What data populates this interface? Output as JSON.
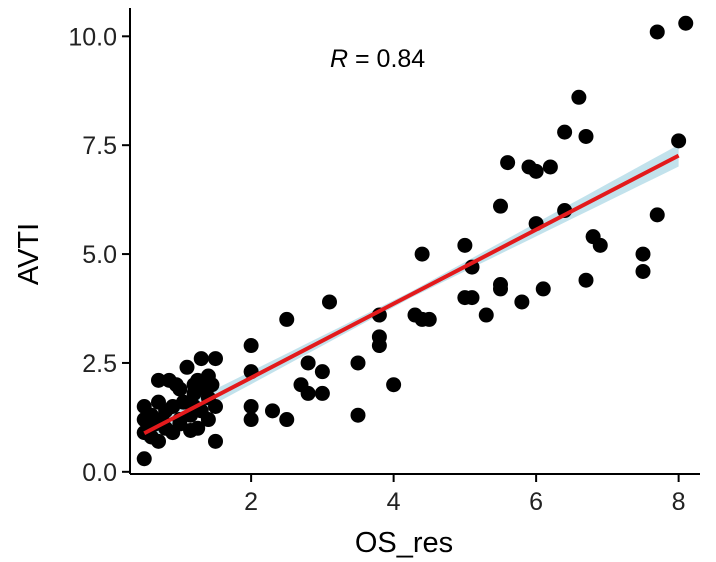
{
  "chart_data": {
    "type": "scatter",
    "title": "",
    "xlabel": "OS_res",
    "ylabel": "AVTI",
    "xlim": [
      0.3,
      8.3
    ],
    "ylim": [
      -0.05,
      10.65
    ],
    "x_ticks": [
      2,
      4,
      6,
      8
    ],
    "x_tick_labels": [
      "2",
      "4",
      "6",
      "8"
    ],
    "y_ticks": [
      0.0,
      2.5,
      5.0,
      7.5,
      10.0
    ],
    "y_tick_labels": [
      "0.0",
      "2.5",
      "5.0",
      "7.5",
      "10.0"
    ],
    "grid": false,
    "annotation": {
      "symbol": "R",
      "text": " = 0.84",
      "value": 0.84
    },
    "regression": {
      "x_range": [
        0.5,
        8.0
      ],
      "slope": 0.85,
      "intercept": 0.46,
      "line_color": "#e31a1c",
      "ci_color": "#add8e6",
      "ci_halfwidth": [
        0.2,
        0.07,
        0.25
      ]
    },
    "points_color": "#000000",
    "points": [
      [
        0.5,
        0.3
      ],
      [
        0.5,
        0.9
      ],
      [
        0.5,
        1.2
      ],
      [
        0.5,
        1.5
      ],
      [
        0.55,
        1.0
      ],
      [
        0.6,
        0.8
      ],
      [
        0.6,
        1.3
      ],
      [
        0.65,
        1.1
      ],
      [
        0.7,
        0.7
      ],
      [
        0.7,
        1.6
      ],
      [
        0.7,
        2.1
      ],
      [
        0.75,
        1.2
      ],
      [
        0.8,
        1.0
      ],
      [
        0.8,
        1.4
      ],
      [
        0.85,
        2.1
      ],
      [
        0.9,
        0.9
      ],
      [
        0.9,
        1.5
      ],
      [
        0.95,
        2.0
      ],
      [
        1.0,
        1.1
      ],
      [
        1.0,
        1.2
      ],
      [
        1.0,
        1.9
      ],
      [
        1.05,
        1.6
      ],
      [
        1.1,
        2.4
      ],
      [
        1.15,
        1.3
      ],
      [
        1.2,
        1.5
      ],
      [
        1.2,
        1.8
      ],
      [
        1.25,
        1.0
      ],
      [
        1.25,
        2.1
      ],
      [
        1.3,
        1.4
      ],
      [
        1.3,
        2.6
      ],
      [
        1.35,
        1.9
      ],
      [
        1.4,
        1.2
      ],
      [
        1.4,
        1.7
      ],
      [
        1.4,
        2.2
      ],
      [
        1.45,
        2.0
      ],
      [
        1.5,
        0.7
      ],
      [
        1.5,
        1.5
      ],
      [
        1.5,
        2.6
      ],
      [
        1.15,
        0.95
      ],
      [
        1.2,
        2.0
      ],
      [
        2.0,
        1.2
      ],
      [
        2.0,
        1.5
      ],
      [
        2.0,
        2.3
      ],
      [
        2.0,
        2.9
      ],
      [
        2.3,
        1.4
      ],
      [
        2.5,
        1.2
      ],
      [
        2.5,
        3.5
      ],
      [
        2.7,
        2.0
      ],
      [
        2.8,
        1.8
      ],
      [
        2.8,
        2.5
      ],
      [
        3.0,
        1.8
      ],
      [
        3.0,
        2.3
      ],
      [
        3.1,
        3.9
      ],
      [
        3.5,
        1.3
      ],
      [
        3.5,
        2.5
      ],
      [
        3.8,
        2.9
      ],
      [
        3.8,
        3.1
      ],
      [
        3.8,
        3.6
      ],
      [
        4.0,
        2.0
      ],
      [
        4.3,
        3.6
      ],
      [
        4.4,
        3.5
      ],
      [
        4.5,
        3.5
      ],
      [
        4.4,
        5.0
      ],
      [
        5.0,
        4.0
      ],
      [
        5.0,
        5.2
      ],
      [
        5.1,
        4.0
      ],
      [
        5.1,
        4.7
      ],
      [
        5.3,
        3.6
      ],
      [
        5.5,
        4.2
      ],
      [
        5.5,
        4.3
      ],
      [
        5.5,
        6.1
      ],
      [
        5.6,
        7.1
      ],
      [
        5.8,
        3.9
      ],
      [
        5.9,
        7.0
      ],
      [
        6.0,
        5.7
      ],
      [
        6.0,
        6.9
      ],
      [
        6.1,
        4.2
      ],
      [
        6.2,
        7.0
      ],
      [
        6.4,
        6.0
      ],
      [
        6.4,
        7.8
      ],
      [
        6.6,
        8.6
      ],
      [
        6.7,
        4.4
      ],
      [
        6.7,
        7.7
      ],
      [
        6.8,
        5.4
      ],
      [
        6.9,
        5.2
      ],
      [
        7.5,
        4.6
      ],
      [
        7.5,
        5.0
      ],
      [
        7.7,
        5.9
      ],
      [
        7.7,
        10.1
      ],
      [
        8.0,
        7.6
      ],
      [
        8.1,
        10.3
      ]
    ]
  }
}
